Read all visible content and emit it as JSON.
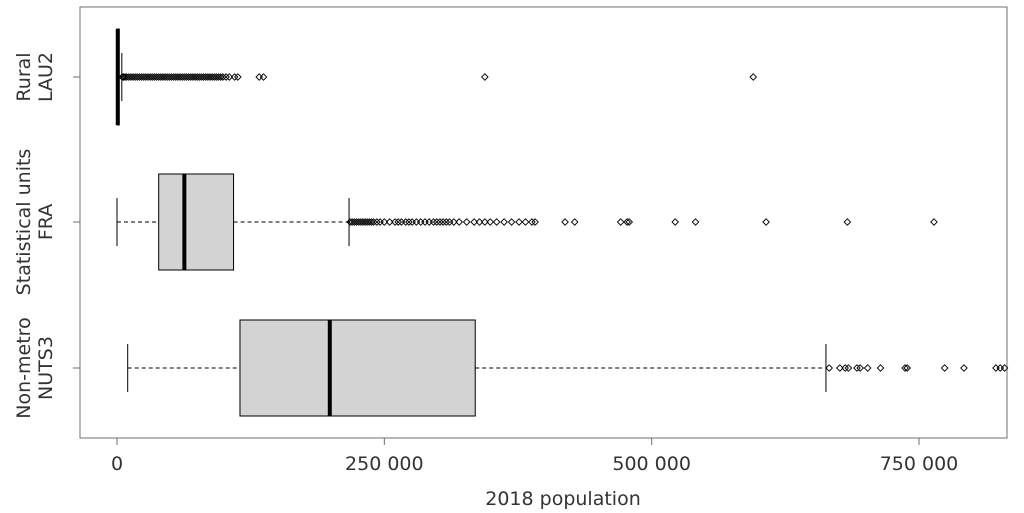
{
  "chart_data": {
    "type": "boxplot",
    "orientation": "horizontal",
    "xlabel": "2018 population",
    "ylabel": "",
    "xlim": [
      -30000,
      832000
    ],
    "grid": false,
    "x_ticks": [
      {
        "value": 0,
        "label": "0"
      },
      {
        "value": 250000,
        "label": "250 000"
      },
      {
        "value": 500000,
        "label": "500 000"
      },
      {
        "value": 750000,
        "label": "750 000"
      }
    ],
    "categories": [
      {
        "label_lines": [
          "Rural",
          "LAU2"
        ]
      },
      {
        "label_lines": [
          "Statistical units",
          "FRA"
        ]
      },
      {
        "label_lines": [
          "Non-metro",
          "NUTS3"
        ]
      }
    ],
    "boxes": [
      {
        "category": "Rural LAU2",
        "whisker_low": 0,
        "q1": 0,
        "median": 700,
        "q3": 2000,
        "whisker_high": 4500,
        "outliers": [
          5000,
          6000,
          7500,
          9000,
          11000,
          13000,
          15000,
          17000,
          19000,
          21000,
          23000,
          25000,
          27000,
          29000,
          31000,
          33000,
          35000,
          37000,
          39000,
          41000,
          43000,
          45000,
          47000,
          49000,
          51000,
          53000,
          55000,
          57000,
          59000,
          61000,
          63000,
          65000,
          67000,
          69000,
          71000,
          73000,
          75000,
          77000,
          79000,
          81000,
          83000,
          85000,
          87000,
          89000,
          91000,
          93000,
          95000,
          97000,
          99000,
          102000,
          105000,
          110000,
          113000,
          133000,
          137000,
          344000,
          595000
        ]
      },
      {
        "category": "Statistical units FRA",
        "whisker_low": 0,
        "q1": 39000,
        "median": 63000,
        "q3": 109000,
        "whisker_high": 217000,
        "outliers": [
          218000,
          220000,
          222000,
          224000,
          226000,
          228000,
          230000,
          232000,
          234000,
          236000,
          238000,
          240000,
          243000,
          246000,
          250000,
          255000,
          260000,
          263000,
          266000,
          270000,
          273000,
          276000,
          280000,
          284000,
          288000,
          292000,
          296000,
          299000,
          302000,
          305000,
          308000,
          311000,
          315000,
          320000,
          327000,
          334000,
          339000,
          344000,
          349000,
          355000,
          362000,
          369000,
          376000,
          382000,
          388000,
          391000,
          419000,
          428000,
          471000,
          477000,
          479000,
          522000,
          541000,
          607000,
          683000,
          764000
        ]
      },
      {
        "category": "Non-metro NUTS3",
        "whisker_low": 10000,
        "q1": 115000,
        "median": 199000,
        "q3": 335000,
        "whisker_high": 663000,
        "outliers": [
          666000,
          676000,
          681000,
          684000,
          692000,
          695000,
          702000,
          714000,
          737000,
          739000,
          774000,
          792000,
          822000,
          826000,
          830000
        ]
      }
    ]
  }
}
